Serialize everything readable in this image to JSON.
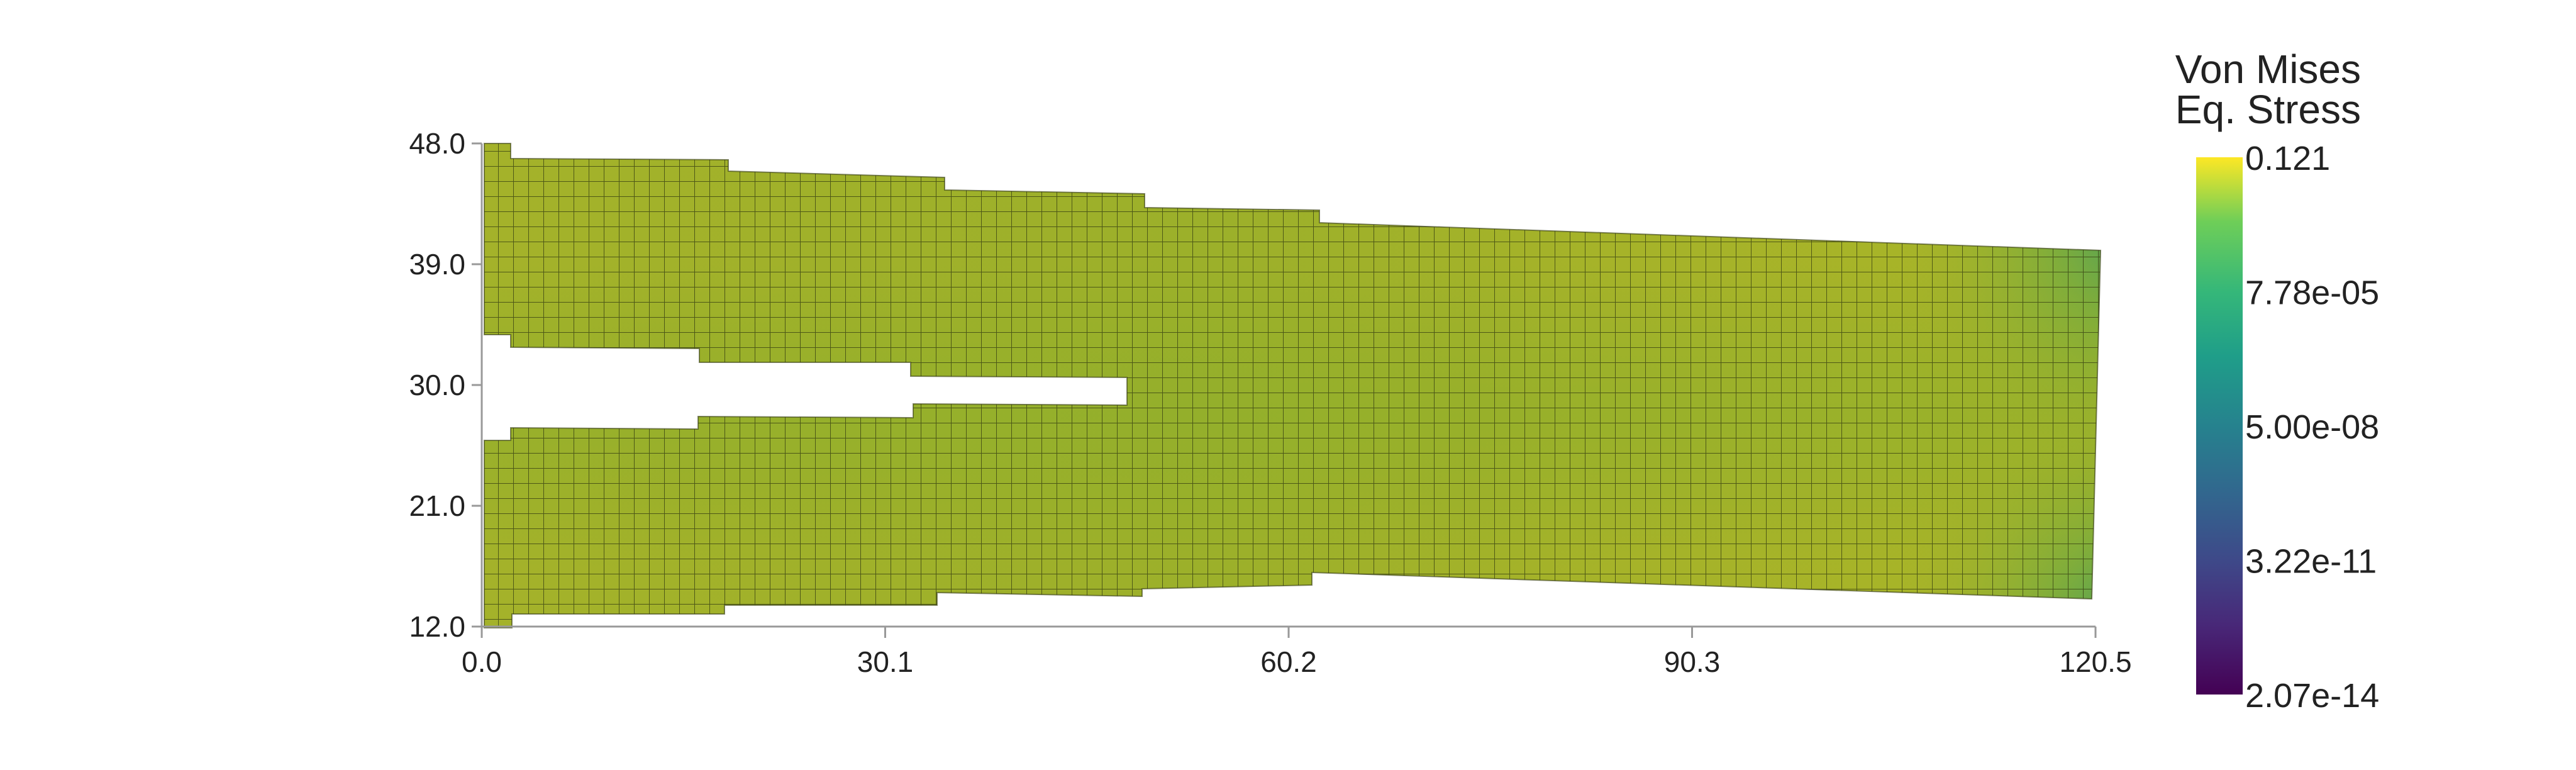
{
  "chart_data": {
    "type": "heatmap",
    "title": "",
    "xlabel": "",
    "ylabel": "",
    "x_ticks": [
      "0.0",
      "30.1",
      "60.2",
      "90.3",
      "120.5"
    ],
    "y_ticks": [
      "48.0",
      "39.0",
      "30.0",
      "21.0",
      "12.0"
    ],
    "xlim": [
      0.0,
      120.5
    ],
    "ylim": [
      12.0,
      48.0
    ],
    "grid": false,
    "colormap": "viridis",
    "legend": {
      "title_line1": "Von Mises",
      "title_line2": "Eq. Stress",
      "placement": "right",
      "labels": [
        "0.121",
        "7.78e-05",
        "5.00e-08",
        "3.22e-11",
        "2.07e-14"
      ]
    },
    "field_colors": {
      "dominant": "#a9b428",
      "greener": "#8aae2c",
      "corner": "#4f9f5a",
      "mesh_line": "#333a10"
    }
  }
}
